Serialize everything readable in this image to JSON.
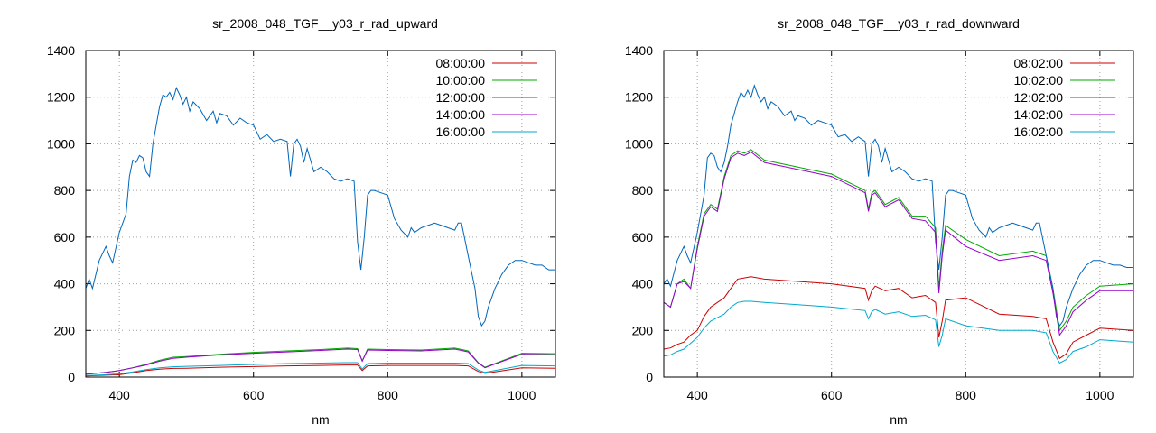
{
  "chart_data": [
    {
      "type": "line",
      "title": "sr_2008_048_TGF__y03_r_rad_upward",
      "xlabel": "nm",
      "ylabel": "",
      "xlim": [
        350,
        1050
      ],
      "ylim": [
        0,
        1400
      ],
      "xticks": [
        400,
        600,
        800,
        1000
      ],
      "yticks": [
        0,
        200,
        400,
        600,
        800,
        1000,
        1200,
        1400
      ],
      "grid": true,
      "legend_position": "top-right",
      "series": [
        {
          "name": "08:00:00",
          "color": "#cc0000",
          "x": [
            350,
            380,
            400,
            420,
            440,
            460,
            480,
            500,
            550,
            600,
            650,
            700,
            740,
            755,
            762,
            770,
            800,
            850,
            900,
            920,
            935,
            945,
            960,
            1000,
            1050
          ],
          "y": [
            5,
            8,
            10,
            18,
            28,
            34,
            37,
            38,
            42,
            45,
            48,
            50,
            52,
            52,
            28,
            48,
            50,
            50,
            50,
            48,
            24,
            16,
            22,
            40,
            38
          ]
        },
        {
          "name": "10:00:00",
          "color": "#00aa00",
          "x": [
            350,
            380,
            400,
            420,
            440,
            460,
            480,
            500,
            550,
            600,
            650,
            700,
            740,
            755,
            762,
            770,
            800,
            850,
            900,
            920,
            935,
            945,
            960,
            1000,
            1050
          ],
          "y": [
            12,
            20,
            28,
            40,
            55,
            72,
            85,
            88,
            98,
            106,
            112,
            118,
            124,
            122,
            70,
            120,
            118,
            116,
            124,
            112,
            62,
            42,
            58,
            102,
            100
          ]
        },
        {
          "name": "12:00:00",
          "color": "#0066bb",
          "x": [
            350,
            355,
            360,
            370,
            380,
            385,
            390,
            400,
            410,
            415,
            420,
            425,
            430,
            435,
            440,
            445,
            450,
            460,
            465,
            470,
            475,
            480,
            485,
            490,
            495,
            500,
            505,
            510,
            520,
            530,
            540,
            545,
            550,
            560,
            570,
            580,
            590,
            600,
            610,
            620,
            630,
            640,
            650,
            655,
            660,
            665,
            670,
            675,
            680,
            690,
            700,
            710,
            720,
            730,
            740,
            750,
            755,
            760,
            765,
            770,
            775,
            780,
            790,
            800,
            810,
            820,
            830,
            835,
            840,
            850,
            860,
            870,
            880,
            890,
            900,
            905,
            910,
            920,
            930,
            935,
            940,
            945,
            950,
            960,
            970,
            980,
            990,
            1000,
            1010,
            1020,
            1030,
            1040,
            1050
          ],
          "y": [
            380,
            420,
            380,
            500,
            560,
            520,
            490,
            620,
            700,
            860,
            930,
            920,
            950,
            940,
            880,
            860,
            1000,
            1160,
            1210,
            1200,
            1220,
            1190,
            1240,
            1210,
            1170,
            1200,
            1140,
            1180,
            1150,
            1100,
            1140,
            1090,
            1130,
            1120,
            1080,
            1110,
            1090,
            1080,
            1020,
            1040,
            1010,
            1020,
            1010,
            860,
            1000,
            1020,
            990,
            920,
            980,
            880,
            900,
            880,
            850,
            840,
            850,
            840,
            580,
            460,
            600,
            780,
            800,
            800,
            790,
            780,
            680,
            630,
            600,
            640,
            620,
            640,
            650,
            660,
            650,
            640,
            630,
            660,
            660,
            520,
            380,
            260,
            220,
            240,
            300,
            380,
            440,
            480,
            500,
            500,
            490,
            480,
            480,
            460,
            460
          ]
        },
        {
          "name": "14:00:00",
          "color": "#9900cc",
          "x": [
            350,
            380,
            400,
            420,
            440,
            460,
            480,
            500,
            550,
            600,
            650,
            700,
            740,
            755,
            762,
            770,
            800,
            850,
            900,
            920,
            935,
            945,
            960,
            1000,
            1050
          ],
          "y": [
            12,
            20,
            28,
            40,
            52,
            68,
            80,
            85,
            95,
            102,
            108,
            114,
            120,
            118,
            68,
            116,
            114,
            112,
            120,
            108,
            60,
            40,
            56,
            98,
            96
          ]
        },
        {
          "name": "16:00:00",
          "color": "#00aacc",
          "x": [
            350,
            380,
            400,
            420,
            440,
            460,
            480,
            500,
            550,
            600,
            650,
            700,
            740,
            755,
            762,
            770,
            800,
            850,
            900,
            920,
            935,
            945,
            960,
            1000,
            1050
          ],
          "y": [
            6,
            10,
            14,
            22,
            32,
            40,
            44,
            46,
            50,
            54,
            58,
            60,
            62,
            62,
            34,
            58,
            60,
            60,
            60,
            58,
            30,
            20,
            28,
            50,
            48
          ]
        }
      ]
    },
    {
      "type": "line",
      "title": "sr_2008_048_TGF__y03_r_rad_downward",
      "xlabel": "nm",
      "ylabel": "",
      "xlim": [
        350,
        1050
      ],
      "ylim": [
        0,
        1400
      ],
      "xticks": [
        400,
        600,
        800,
        1000
      ],
      "yticks": [
        0,
        200,
        400,
        600,
        800,
        1000,
        1200,
        1400
      ],
      "grid": true,
      "legend_position": "top-right",
      "series": [
        {
          "name": "08:02:00",
          "color": "#cc0000",
          "x": [
            350,
            360,
            370,
            380,
            390,
            400,
            410,
            420,
            430,
            440,
            450,
            460,
            470,
            480,
            500,
            550,
            600,
            650,
            655,
            660,
            665,
            680,
            700,
            720,
            740,
            755,
            760,
            765,
            770,
            800,
            850,
            900,
            920,
            930,
            940,
            950,
            960,
            980,
            1000,
            1050
          ],
          "y": [
            120,
            125,
            140,
            150,
            180,
            200,
            260,
            300,
            320,
            340,
            380,
            420,
            425,
            430,
            420,
            410,
            400,
            380,
            330,
            370,
            390,
            370,
            380,
            340,
            350,
            320,
            170,
            240,
            330,
            340,
            270,
            260,
            250,
            150,
            80,
            100,
            150,
            180,
            210,
            200
          ]
        },
        {
          "name": "10:02:00",
          "color": "#00aa00",
          "x": [
            350,
            360,
            370,
            380,
            390,
            400,
            410,
            420,
            430,
            440,
            450,
            460,
            470,
            480,
            500,
            550,
            600,
            650,
            655,
            660,
            665,
            680,
            700,
            720,
            740,
            755,
            760,
            765,
            770,
            800,
            850,
            900,
            920,
            930,
            940,
            950,
            960,
            980,
            1000,
            1050
          ],
          "y": [
            320,
            300,
            400,
            420,
            380,
            560,
            700,
            740,
            720,
            860,
            950,
            970,
            960,
            975,
            930,
            900,
            870,
            800,
            720,
            790,
            800,
            740,
            770,
            690,
            690,
            640,
            380,
            540,
            650,
            590,
            520,
            540,
            520,
            380,
            200,
            240,
            300,
            350,
            390,
            400
          ]
        },
        {
          "name": "12:02:00",
          "color": "#0066bb",
          "x": [
            350,
            355,
            360,
            370,
            380,
            385,
            390,
            400,
            410,
            415,
            420,
            425,
            430,
            435,
            440,
            445,
            450,
            460,
            465,
            470,
            475,
            480,
            485,
            490,
            495,
            500,
            505,
            510,
            520,
            530,
            540,
            545,
            550,
            560,
            570,
            580,
            590,
            600,
            610,
            620,
            630,
            640,
            650,
            655,
            660,
            665,
            670,
            675,
            680,
            690,
            700,
            710,
            720,
            730,
            740,
            750,
            755,
            760,
            765,
            770,
            775,
            780,
            790,
            800,
            810,
            820,
            830,
            835,
            840,
            850,
            860,
            870,
            880,
            890,
            900,
            905,
            910,
            920,
            930,
            935,
            940,
            945,
            950,
            960,
            970,
            980,
            990,
            1000,
            1010,
            1020,
            1030,
            1040,
            1050
          ],
          "y": [
            400,
            420,
            390,
            500,
            560,
            520,
            490,
            620,
            780,
            940,
            960,
            950,
            900,
            880,
            920,
            990,
            1080,
            1180,
            1220,
            1200,
            1230,
            1200,
            1250,
            1210,
            1180,
            1200,
            1150,
            1180,
            1160,
            1120,
            1140,
            1100,
            1120,
            1110,
            1080,
            1100,
            1090,
            1080,
            1030,
            1040,
            1010,
            1030,
            1010,
            860,
            1000,
            1020,
            990,
            920,
            980,
            880,
            900,
            880,
            850,
            840,
            850,
            840,
            580,
            460,
            600,
            780,
            800,
            800,
            790,
            780,
            680,
            630,
            600,
            640,
            620,
            640,
            650,
            660,
            650,
            640,
            630,
            660,
            660,
            520,
            380,
            260,
            220,
            240,
            300,
            380,
            440,
            480,
            500,
            500,
            490,
            480,
            480,
            470,
            470
          ]
        },
        {
          "name": "14:02:00",
          "color": "#9900cc",
          "x": [
            350,
            360,
            370,
            380,
            390,
            400,
            410,
            420,
            430,
            440,
            450,
            460,
            470,
            480,
            500,
            550,
            600,
            650,
            655,
            660,
            665,
            680,
            700,
            720,
            740,
            755,
            760,
            765,
            770,
            800,
            850,
            900,
            920,
            930,
            940,
            950,
            960,
            980,
            1000,
            1050
          ],
          "y": [
            320,
            300,
            400,
            410,
            380,
            550,
            690,
            730,
            710,
            850,
            940,
            960,
            950,
            965,
            920,
            890,
            860,
            790,
            710,
            780,
            790,
            730,
            760,
            680,
            670,
            620,
            360,
            520,
            630,
            560,
            500,
            520,
            500,
            360,
            180,
            220,
            280,
            330,
            370,
            370
          ]
        },
        {
          "name": "16:02:00",
          "color": "#00aacc",
          "x": [
            350,
            360,
            370,
            380,
            390,
            400,
            410,
            420,
            430,
            440,
            450,
            460,
            470,
            480,
            500,
            550,
            600,
            650,
            655,
            660,
            665,
            680,
            700,
            720,
            740,
            755,
            760,
            765,
            770,
            800,
            850,
            900,
            920,
            930,
            940,
            950,
            960,
            980,
            1000,
            1050
          ],
          "y": [
            90,
            95,
            110,
            120,
            145,
            170,
            210,
            240,
            255,
            270,
            300,
            320,
            325,
            325,
            320,
            310,
            300,
            285,
            250,
            280,
            290,
            270,
            280,
            260,
            265,
            245,
            130,
            180,
            250,
            220,
            200,
            200,
            190,
            110,
            60,
            75,
            110,
            130,
            160,
            150
          ]
        }
      ]
    }
  ]
}
